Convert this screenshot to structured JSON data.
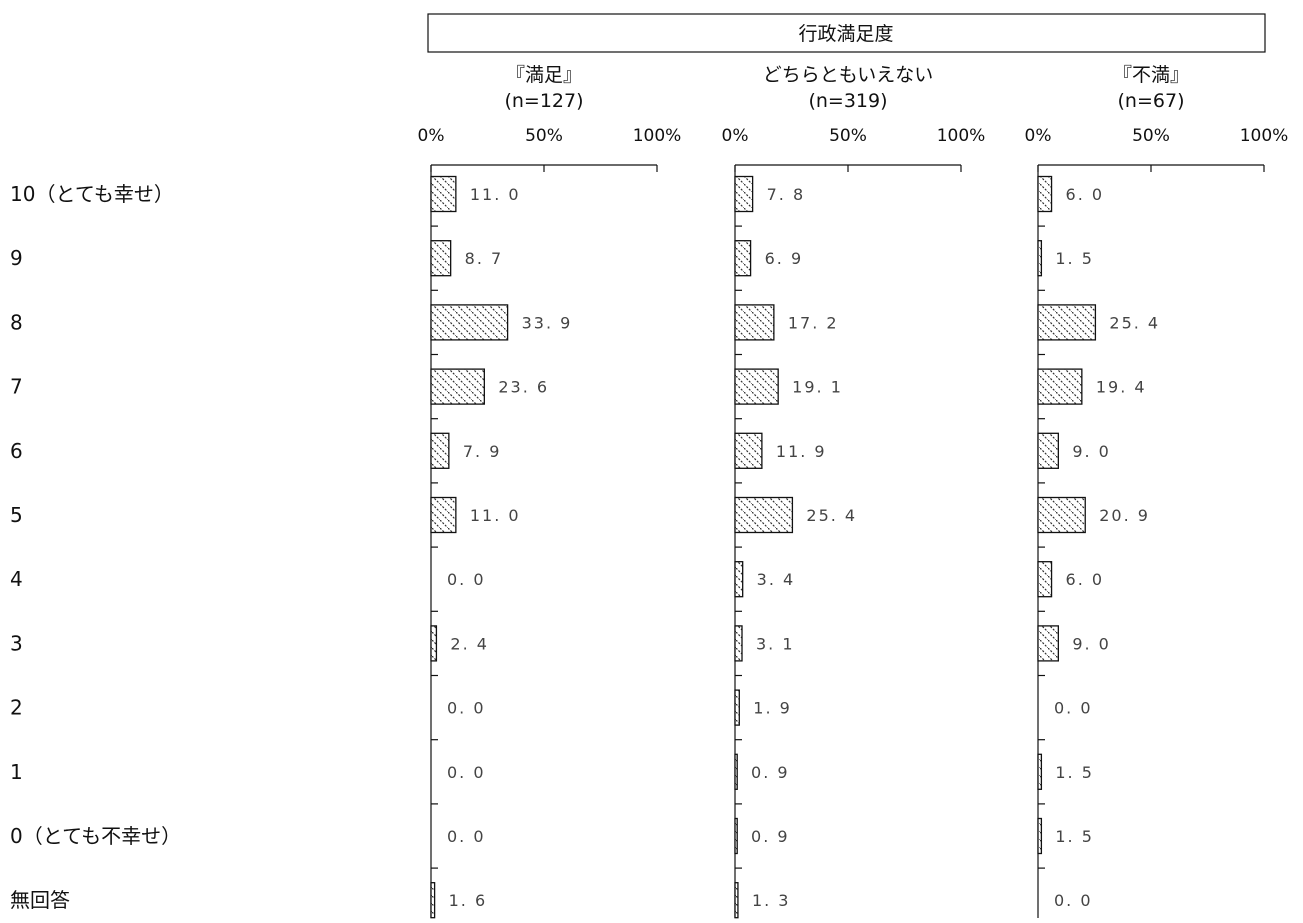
{
  "chart_data": {
    "type": "bar",
    "orientation": "horizontal",
    "title": "行政満足度",
    "categories": [
      "10（とても幸せ）",
      "9",
      "8",
      "7",
      "6",
      "5",
      "4",
      "3",
      "2",
      "1",
      "0（とても不幸せ）",
      "無回答"
    ],
    "tick_labels": [
      "0%",
      "50%",
      "100%"
    ],
    "xlim": [
      0,
      100
    ],
    "series": [
      {
        "name": "『満足』",
        "n_label": "(n=127)",
        "values": [
          11.0,
          8.7,
          33.9,
          23.6,
          7.9,
          11.0,
          0.0,
          2.4,
          0.0,
          0.0,
          0.0,
          1.6
        ],
        "labels": [
          "11. 0",
          "8. 7",
          "33. 9",
          "23. 6",
          "7. 9",
          "11. 0",
          "0. 0",
          "2. 4",
          "0. 0",
          "0. 0",
          "0. 0",
          "1. 6"
        ]
      },
      {
        "name": "どちらともいえない",
        "n_label": "(n=319)",
        "values": [
          7.8,
          6.9,
          17.2,
          19.1,
          11.9,
          25.4,
          3.4,
          3.1,
          1.9,
          0.9,
          0.9,
          1.3
        ],
        "labels": [
          "7. 8",
          "6. 9",
          "17. 2",
          "19. 1",
          "11. 9",
          "25. 4",
          "3. 4",
          "3. 1",
          "1. 9",
          "0. 9",
          "0. 9",
          "1. 3"
        ]
      },
      {
        "name": "『不満』",
        "n_label": "(n=67)",
        "values": [
          6.0,
          1.5,
          25.4,
          19.4,
          9.0,
          20.9,
          6.0,
          9.0,
          0.0,
          1.5,
          1.5,
          0.0
        ],
        "labels": [
          "6. 0",
          "1. 5",
          "25. 4",
          "19. 4",
          "9. 0",
          "20. 9",
          "6. 0",
          "9. 0",
          "0. 0",
          "1. 5",
          "1. 5",
          "0. 0"
        ]
      }
    ],
    "bar_pattern": "diagonal-hatch",
    "colors": {
      "bar_fill": "#ffffff",
      "bar_stroke": "#111111",
      "hatch": "#333333"
    },
    "grid": false,
    "legend": "none"
  }
}
